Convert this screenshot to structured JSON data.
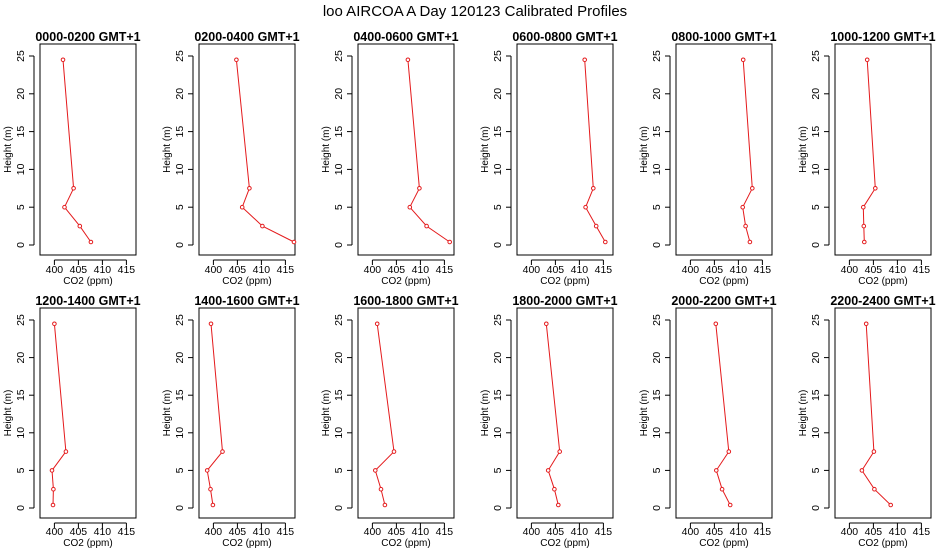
{
  "figure": {
    "title": "loo AIRCOA A  Day 120123  Calibrated Profiles"
  },
  "chart_data": [
    {
      "type": "line",
      "title": "0000-0200 GMT+1",
      "xlabel": "CO2 (ppm)",
      "ylabel": "Height (m)",
      "xlim": [
        397,
        417
      ],
      "ylim": [
        0,
        25
      ],
      "xticks": [
        400,
        405,
        410,
        415
      ],
      "yticks": [
        0,
        5,
        10,
        15,
        20,
        25
      ],
      "line_color": "#e41a1c",
      "x": [
        401.8,
        404.0,
        402.1,
        405.3,
        407.6
      ],
      "y": [
        24.5,
        7.5,
        5.0,
        2.5,
        0.4
      ]
    },
    {
      "type": "line",
      "title": "0200-0400 GMT+1",
      "xlabel": "CO2 (ppm)",
      "ylabel": "Height (m)",
      "xlim": [
        397,
        417
      ],
      "ylim": [
        0,
        25
      ],
      "xticks": [
        400,
        405,
        410,
        415
      ],
      "yticks": [
        0,
        5,
        10,
        15,
        20,
        25
      ],
      "line_color": "#e41a1c",
      "x": [
        404.8,
        407.5,
        406.0,
        410.2,
        416.8
      ],
      "y": [
        24.5,
        7.5,
        5.0,
        2.5,
        0.4
      ]
    },
    {
      "type": "line",
      "title": "0400-0600 GMT+1",
      "xlabel": "CO2 (ppm)",
      "ylabel": "Height (m)",
      "xlim": [
        397,
        417
      ],
      "ylim": [
        0,
        25
      ],
      "xticks": [
        400,
        405,
        410,
        415
      ],
      "yticks": [
        0,
        5,
        10,
        15,
        20,
        25
      ],
      "line_color": "#e41a1c",
      "x": [
        407.4,
        409.8,
        407.8,
        411.3,
        416.1
      ],
      "y": [
        24.5,
        7.5,
        5.0,
        2.5,
        0.4
      ]
    },
    {
      "type": "line",
      "title": "0600-0800 GMT+1",
      "xlabel": "CO2 (ppm)",
      "ylabel": "Height (m)",
      "xlim": [
        397,
        417
      ],
      "ylim": [
        0,
        25
      ],
      "xticks": [
        400,
        405,
        410,
        415
      ],
      "yticks": [
        0,
        5,
        10,
        15,
        20,
        25
      ],
      "line_color": "#e41a1c",
      "x": [
        411.1,
        412.9,
        411.3,
        413.5,
        415.4
      ],
      "y": [
        24.5,
        7.5,
        5.0,
        2.5,
        0.4
      ]
    },
    {
      "type": "line",
      "title": "0800-1000 GMT+1",
      "xlabel": "CO2 (ppm)",
      "ylabel": "Height (m)",
      "xlim": [
        397,
        417
      ],
      "ylim": [
        0,
        25
      ],
      "xticks": [
        400,
        405,
        410,
        415
      ],
      "yticks": [
        0,
        5,
        10,
        15,
        20,
        25
      ],
      "line_color": "#e41a1c",
      "x": [
        411.0,
        412.9,
        410.9,
        411.5,
        412.4
      ],
      "y": [
        24.5,
        7.5,
        5.0,
        2.5,
        0.4
      ]
    },
    {
      "type": "line",
      "title": "1000-1200 GMT+1",
      "xlabel": "CO2 (ppm)",
      "ylabel": "Height (m)",
      "xlim": [
        397,
        417
      ],
      "ylim": [
        0,
        25
      ],
      "xticks": [
        400,
        405,
        410,
        415
      ],
      "yticks": [
        0,
        5,
        10,
        15,
        20,
        25
      ],
      "line_color": "#e41a1c",
      "x": [
        403.7,
        405.4,
        402.9,
        403.0,
        403.1
      ],
      "y": [
        24.5,
        7.5,
        5.0,
        2.5,
        0.4
      ]
    },
    {
      "type": "line",
      "title": "1200-1400 GMT+1",
      "xlabel": "CO2 (ppm)",
      "ylabel": "Height (m)",
      "xlim": [
        397,
        417
      ],
      "ylim": [
        0,
        25
      ],
      "xticks": [
        400,
        405,
        410,
        415
      ],
      "yticks": [
        0,
        5,
        10,
        15,
        20,
        25
      ],
      "line_color": "#e41a1c",
      "x": [
        400.0,
        402.4,
        399.5,
        399.8,
        399.7
      ],
      "y": [
        24.5,
        7.5,
        5.0,
        2.5,
        0.4
      ]
    },
    {
      "type": "line",
      "title": "1400-1600 GMT+1",
      "xlabel": "CO2 (ppm)",
      "ylabel": "Height (m)",
      "xlim": [
        397,
        417
      ],
      "ylim": [
        0,
        25
      ],
      "xticks": [
        400,
        405,
        410,
        415
      ],
      "yticks": [
        0,
        5,
        10,
        15,
        20,
        25
      ],
      "line_color": "#e41a1c",
      "x": [
        399.5,
        401.9,
        398.7,
        399.4,
        399.9
      ],
      "y": [
        24.5,
        7.5,
        5.0,
        2.5,
        0.4
      ]
    },
    {
      "type": "line",
      "title": "1600-1800 GMT+1",
      "xlabel": "CO2 (ppm)",
      "ylabel": "Height (m)",
      "xlim": [
        397,
        417
      ],
      "ylim": [
        0,
        25
      ],
      "xticks": [
        400,
        405,
        410,
        415
      ],
      "yticks": [
        0,
        5,
        10,
        15,
        20,
        25
      ],
      "line_color": "#e41a1c",
      "x": [
        401.0,
        404.5,
        400.6,
        401.8,
        402.6
      ],
      "y": [
        24.5,
        7.5,
        5.0,
        2.5,
        0.4
      ]
    },
    {
      "type": "line",
      "title": "1800-2000 GMT+1",
      "xlabel": "CO2 (ppm)",
      "ylabel": "Height (m)",
      "xlim": [
        397,
        417
      ],
      "ylim": [
        0,
        25
      ],
      "xticks": [
        400,
        405,
        410,
        415
      ],
      "yticks": [
        0,
        5,
        10,
        15,
        20,
        25
      ],
      "line_color": "#e41a1c",
      "x": [
        403.1,
        405.9,
        403.5,
        404.8,
        405.6
      ],
      "y": [
        24.5,
        7.5,
        5.0,
        2.5,
        0.4
      ]
    },
    {
      "type": "line",
      "title": "2000-2200 GMT+1",
      "xlabel": "CO2 (ppm)",
      "ylabel": "Height (m)",
      "xlim": [
        397,
        417
      ],
      "ylim": [
        0,
        25
      ],
      "xticks": [
        400,
        405,
        410,
        415
      ],
      "yticks": [
        0,
        5,
        10,
        15,
        20,
        25
      ],
      "line_color": "#e41a1c",
      "x": [
        405.3,
        408.0,
        405.4,
        406.6,
        408.3
      ],
      "y": [
        24.5,
        7.5,
        5.0,
        2.5,
        0.4
      ]
    },
    {
      "type": "line",
      "title": "2200-2400 GMT+1",
      "xlabel": "CO2 (ppm)",
      "ylabel": "Height (m)",
      "xlim": [
        397,
        417
      ],
      "ylim": [
        0,
        25
      ],
      "xticks": [
        400,
        405,
        410,
        415
      ],
      "yticks": [
        0,
        5,
        10,
        15,
        20,
        25
      ],
      "line_color": "#e41a1c",
      "x": [
        403.5,
        405.1,
        402.6,
        405.2,
        408.6
      ],
      "y": [
        24.5,
        7.5,
        5.0,
        2.5,
        0.4
      ]
    }
  ]
}
